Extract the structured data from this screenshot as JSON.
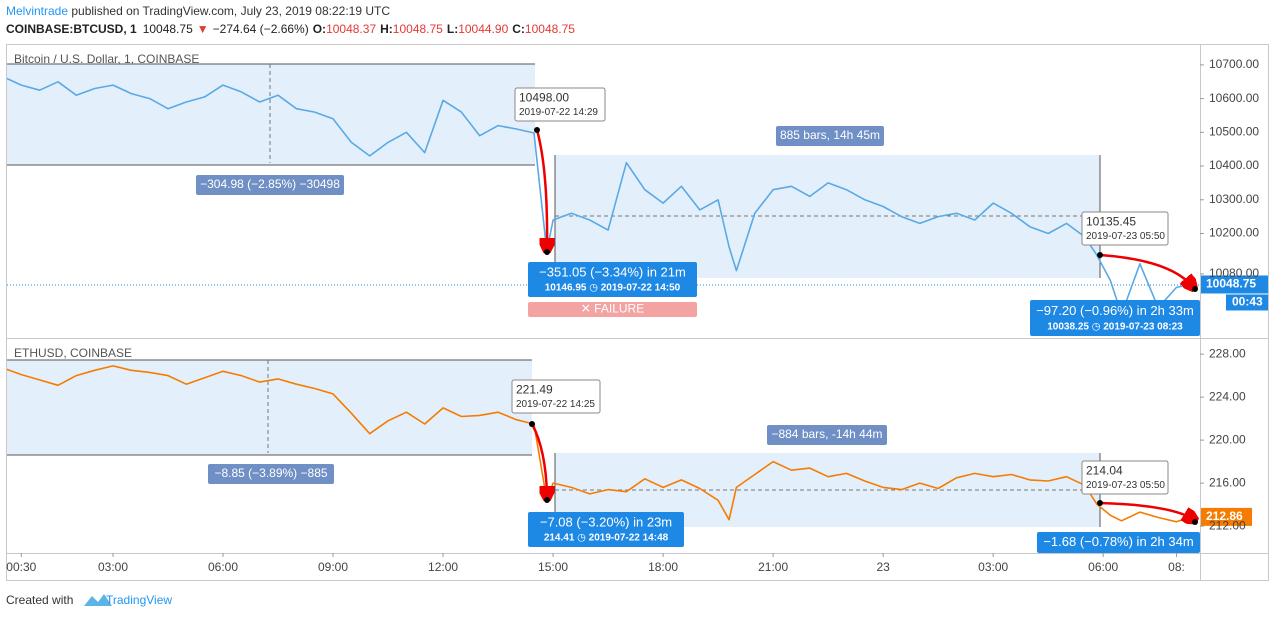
{
  "header": {
    "author": "Melvintrade",
    "published": " published on TradingView.com, July 23, 2019 08:22:19 UTC",
    "symbol": "COINBASE:BTCUSD, 1",
    "last": "10048.75",
    "direction": "▼",
    "change": "−274.64 (−2.66%)",
    "ohlc": [
      {
        "label": "O:",
        "value": "10048.37"
      },
      {
        "label": "H:",
        "value": "10048.75"
      },
      {
        "label": "L:",
        "value": "10044.90"
      },
      {
        "label": "C:",
        "value": "10048.75"
      }
    ]
  },
  "chart_data": [
    {
      "type": "line",
      "title": "Bitcoin / U.S. Dollar, 1, COINBASE",
      "color": "#5aa9e6",
      "x": [
        0.1,
        0.5,
        1,
        1.5,
        2,
        2.5,
        3,
        3.5,
        4,
        4.5,
        5,
        5.5,
        6,
        6.5,
        7,
        7.5,
        8,
        8.5,
        9,
        9.5,
        10,
        10.5,
        11,
        11.5,
        12,
        12.5,
        13,
        13.5,
        14,
        14.48,
        14.83,
        15,
        15.5,
        16,
        16.5,
        17,
        17.5,
        18,
        18.5,
        19,
        19.5,
        19.8,
        20,
        20.5,
        21,
        21.5,
        22,
        22.5,
        23,
        23.5,
        24,
        24.5,
        25,
        25.5,
        26,
        26.5,
        27,
        27.5,
        28,
        28.5,
        29,
        29.5,
        29.83,
        30.2,
        30.5,
        31,
        31.5,
        32,
        32.38
      ],
      "values": [
        10660,
        10640,
        10625,
        10650,
        10610,
        10630,
        10640,
        10615,
        10600,
        10570,
        10590,
        10605,
        10640,
        10620,
        10590,
        10610,
        10570,
        10560,
        10540,
        10470,
        10430,
        10470,
        10500,
        10440,
        10595,
        10560,
        10490,
        10520,
        10510,
        10498,
        10146.95,
        10240,
        10260,
        10240,
        10210,
        10410,
        10330,
        10290,
        10340,
        10270,
        10300,
        10160,
        10090,
        10260,
        10330,
        10340,
        10310,
        10350,
        10330,
        10300,
        10280,
        10250,
        10230,
        10250,
        10260,
        10240,
        10290,
        10260,
        10220,
        10200,
        10230,
        10190,
        10135.45,
        10060,
        9960,
        10110,
        9980,
        10040,
        10048.75
      ],
      "xlim": [
        0.11,
        32.64
      ],
      "ylim": [
        9890,
        10762
      ],
      "yticks": [
        {
          "value": 10700,
          "label": "10700.00"
        },
        {
          "value": 10600,
          "label": "10600.00"
        },
        {
          "value": 10500,
          "label": "10500.00"
        },
        {
          "value": 10400,
          "label": "10400.00"
        },
        {
          "value": 10300,
          "label": "10300.00"
        },
        {
          "value": 10200,
          "label": "10200.00"
        },
        {
          "value": 10080,
          "label": "10080.00"
        }
      ],
      "price_label": "10048.75",
      "countdown": "00:43",
      "annotations": [
        {
          "style": "white",
          "lines": [
            "10498.00",
            "2019-07-22 14:29"
          ]
        },
        {
          "style": "slate",
          "lines": [
            "885 bars, 14h 45m"
          ]
        },
        {
          "style": "slate",
          "lines": [
            "−304.98 (−2.85%) −30498"
          ]
        },
        {
          "style": "blue",
          "lines": [
            "−351.05 (−3.34%) in 21m",
            "10146.95  ◷ 2019-07-22  14:50"
          ]
        },
        {
          "style": "fail",
          "lines": [
            "✕ FAILURE"
          ]
        },
        {
          "style": "white",
          "lines": [
            "10135.45",
            "2019-07-23 05:50"
          ]
        },
        {
          "style": "blue",
          "lines": [
            "−97.20 (−0.96%) in 2h 33m",
            "10038.25  ◷ 2019-07-23  08:23"
          ]
        }
      ]
    },
    {
      "type": "line",
      "title": "ETHUSD, COINBASE",
      "color": "#f57c00",
      "x": [
        0.1,
        0.5,
        1,
        1.5,
        2,
        2.5,
        3,
        3.5,
        4,
        4.5,
        5,
        5.5,
        6,
        6.5,
        7,
        7.5,
        8,
        8.5,
        9,
        9.5,
        10,
        10.5,
        11,
        11.5,
        12,
        12.5,
        13,
        13.5,
        14,
        14.48,
        14.83,
        15,
        15.5,
        16,
        16.5,
        17,
        17.5,
        18,
        18.5,
        19,
        19.5,
        19.8,
        20,
        20.5,
        21,
        21.5,
        22,
        22.5,
        23,
        23.5,
        24,
        24.5,
        25,
        25.5,
        26,
        26.5,
        27,
        27.5,
        28,
        28.5,
        29,
        29.5,
        29.83,
        30.2,
        30.5,
        31,
        31.5,
        32,
        32.38
      ],
      "values": [
        226.6,
        226.1,
        225.6,
        225.1,
        226.0,
        226.5,
        226.9,
        226.5,
        226.3,
        226.0,
        225.2,
        225.8,
        226.4,
        226.0,
        225.4,
        225.7,
        225.2,
        224.8,
        224.3,
        222.5,
        220.6,
        221.8,
        222.6,
        221.5,
        223.0,
        222.2,
        222.3,
        222.6,
        221.9,
        221.49,
        214.41,
        216.0,
        215.6,
        215.0,
        215.4,
        215.2,
        216.4,
        215.6,
        216.3,
        215.5,
        214.4,
        212.6,
        215.6,
        216.8,
        218.0,
        217.2,
        217.4,
        216.6,
        216.9,
        216.2,
        215.6,
        215.4,
        216.0,
        215.5,
        216.5,
        216.9,
        216.6,
        216.8,
        216.3,
        216.2,
        216.6,
        215.8,
        214.04,
        213.0,
        212.5,
        213.3,
        212.8,
        212.4,
        212.86
      ],
      "xlim": [
        0.11,
        32.64
      ],
      "ylim": [
        209.5,
        229.5
      ],
      "yticks": [
        {
          "value": 228,
          "label": "228.00"
        },
        {
          "value": 224,
          "label": "224.00"
        },
        {
          "value": 220,
          "label": "220.00"
        },
        {
          "value": 216,
          "label": "216.00"
        },
        {
          "value": 212,
          "label": "212.00"
        }
      ],
      "xticks": [
        {
          "value": 0.5,
          "label": "00:30"
        },
        {
          "value": 3,
          "label": "03:00"
        },
        {
          "value": 6,
          "label": "06:00"
        },
        {
          "value": 9,
          "label": "09:00"
        },
        {
          "value": 12,
          "label": "12:00"
        },
        {
          "value": 15,
          "label": "15:00"
        },
        {
          "value": 18,
          "label": "18:00"
        },
        {
          "value": 21,
          "label": "21:00"
        },
        {
          "value": 24,
          "label": "23"
        },
        {
          "value": 27,
          "label": "03:00"
        },
        {
          "value": 30,
          "label": "06:00"
        },
        {
          "value": 32,
          "label": "08:"
        }
      ],
      "price_label": "212.86",
      "annotations": [
        {
          "style": "white",
          "lines": [
            "221.49",
            "2019-07-22 14:25"
          ]
        },
        {
          "style": "slate",
          "lines": [
            "−884 bars, -14h 44m"
          ]
        },
        {
          "style": "slate",
          "lines": [
            "−8.85 (−3.89%) −885"
          ]
        },
        {
          "style": "blue",
          "lines": [
            "−7.08 (−3.20%) in 23m",
            "214.41  ◷ 2019-07-22  14:48"
          ]
        },
        {
          "style": "white",
          "lines": [
            "214.04",
            "2019-07-23 05:50"
          ]
        },
        {
          "style": "blue",
          "lines": [
            "−1.68 (−0.78%) in 2h 34m"
          ]
        }
      ]
    }
  ],
  "footer": {
    "created_with": "Created with",
    "brand": "TradingView"
  }
}
